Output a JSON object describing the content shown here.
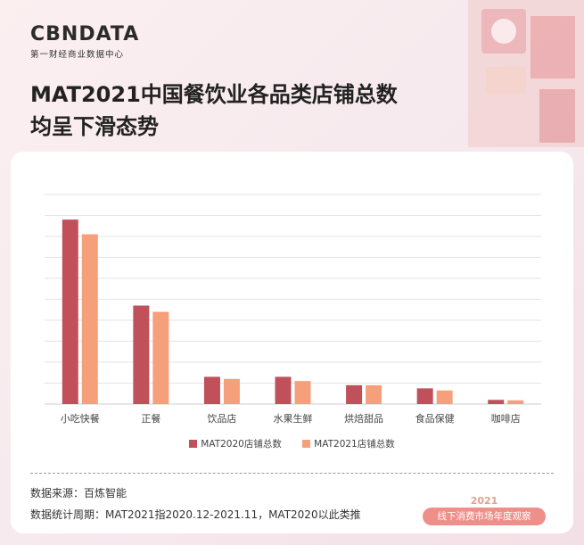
{
  "brand": {
    "name": "CBNDATA",
    "subtitle": "第一财经商业数据中心"
  },
  "headline": {
    "line1": "MAT2021中国餐饮业各品类店铺总数",
    "line2": "均呈下滑态势"
  },
  "colors": {
    "series_2020": "#c0505a",
    "series_2021": "#f6a07b",
    "grid": "#e3e3e3",
    "badge": "#ef8f8a"
  },
  "chart_data": {
    "type": "bar",
    "categories": [
      "小吃快餐",
      "正餐",
      "饮品店",
      "水果生鲜",
      "烘焙甜品",
      "食品保健",
      "咖啡店"
    ],
    "series": [
      {
        "name": "MAT2020店铺总数",
        "values": [
          88,
          47,
          13,
          13,
          9,
          7.5,
          2
        ]
      },
      {
        "name": "MAT2021店铺总数",
        "values": [
          81,
          44,
          12,
          11,
          9,
          6.5,
          1.8
        ]
      }
    ],
    "ylim": [
      0,
      100
    ],
    "grid": true,
    "legend": "bottom"
  },
  "footer": {
    "source": "数据来源：百炼智能",
    "period": "数据统计周期：MAT2021指2020.12-2021.11，MAT2020以此类推",
    "badge_year": "2021",
    "badge_text": "线下消费市场年度观察"
  }
}
